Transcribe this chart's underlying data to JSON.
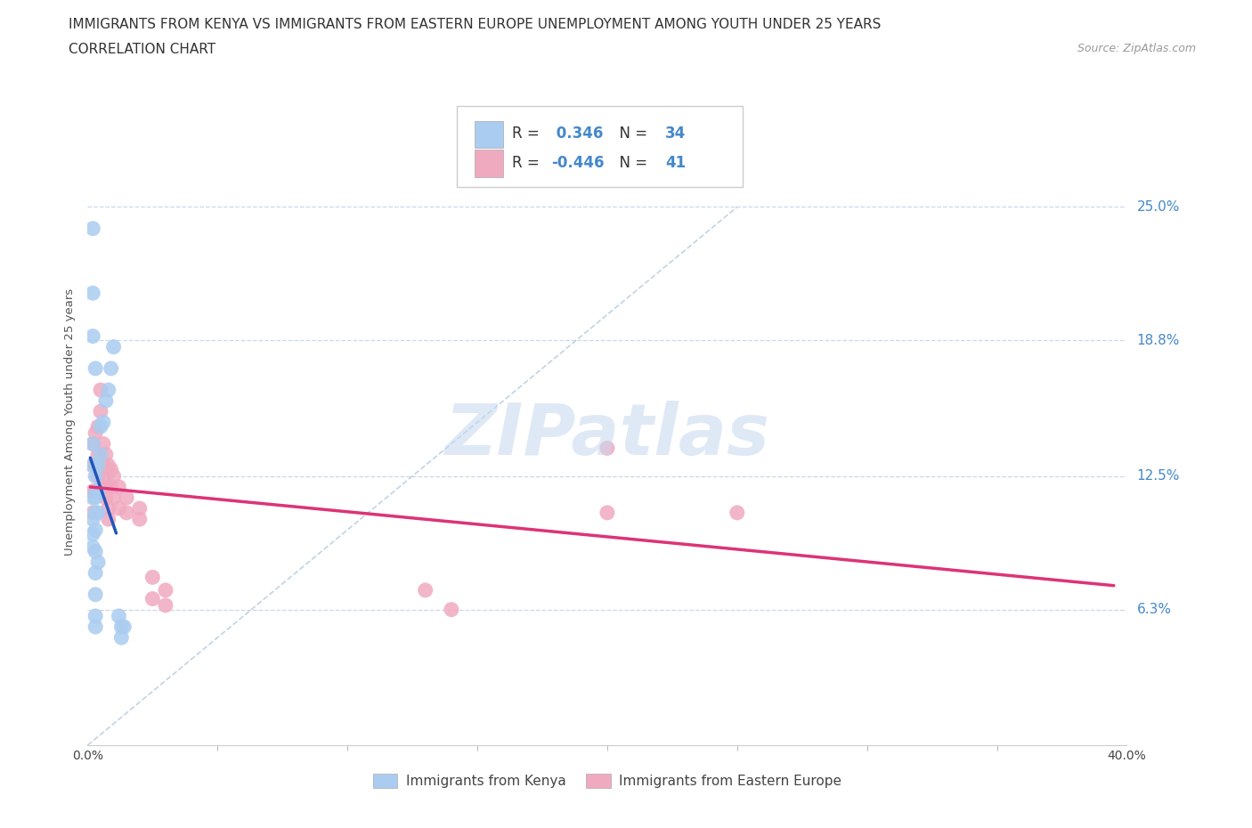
{
  "title_line1": "IMMIGRANTS FROM KENYA VS IMMIGRANTS FROM EASTERN EUROPE UNEMPLOYMENT AMONG YOUTH UNDER 25 YEARS",
  "title_line2": "CORRELATION CHART",
  "source": "Source: ZipAtlas.com",
  "ylabel": "Unemployment Among Youth under 25 years",
  "ytick_labels": [
    "25.0%",
    "18.8%",
    "12.5%",
    "6.3%"
  ],
  "ytick_values": [
    0.25,
    0.188,
    0.125,
    0.063
  ],
  "xrange": [
    0.0,
    0.4
  ],
  "yrange": [
    0.0,
    0.3
  ],
  "kenya_color": "#aaccf0",
  "eastern_color": "#f0aac0",
  "kenya_line_color": "#2255bb",
  "eastern_line_color": "#dd3377",
  "diagonal_color": "#b8ccdd",
  "kenya_R": 0.346,
  "kenya_N": 34,
  "eastern_R": -0.446,
  "eastern_N": 41,
  "kenya_scatter": [
    [
      0.002,
      0.115
    ],
    [
      0.002,
      0.105
    ],
    [
      0.002,
      0.098
    ],
    [
      0.002,
      0.092
    ],
    [
      0.003,
      0.125
    ],
    [
      0.003,
      0.115
    ],
    [
      0.003,
      0.108
    ],
    [
      0.003,
      0.1
    ],
    [
      0.003,
      0.09
    ],
    [
      0.003,
      0.08
    ],
    [
      0.003,
      0.07
    ],
    [
      0.003,
      0.06
    ],
    [
      0.004,
      0.13
    ],
    [
      0.004,
      0.118
    ],
    [
      0.004,
      0.108
    ],
    [
      0.005,
      0.148
    ],
    [
      0.005,
      0.135
    ],
    [
      0.006,
      0.15
    ],
    [
      0.007,
      0.16
    ],
    [
      0.008,
      0.165
    ],
    [
      0.009,
      0.175
    ],
    [
      0.01,
      0.185
    ],
    [
      0.012,
      0.06
    ],
    [
      0.013,
      0.055
    ],
    [
      0.013,
      0.05
    ],
    [
      0.014,
      0.055
    ],
    [
      0.002,
      0.13
    ],
    [
      0.002,
      0.14
    ],
    [
      0.002,
      0.19
    ],
    [
      0.002,
      0.21
    ],
    [
      0.002,
      0.24
    ],
    [
      0.003,
      0.175
    ],
    [
      0.004,
      0.085
    ],
    [
      0.003,
      0.055
    ]
  ],
  "eastern_scatter": [
    [
      0.002,
      0.14
    ],
    [
      0.002,
      0.13
    ],
    [
      0.002,
      0.118
    ],
    [
      0.002,
      0.108
    ],
    [
      0.003,
      0.145
    ],
    [
      0.003,
      0.13
    ],
    [
      0.003,
      0.118
    ],
    [
      0.004,
      0.148
    ],
    [
      0.004,
      0.135
    ],
    [
      0.004,
      0.125
    ],
    [
      0.005,
      0.165
    ],
    [
      0.005,
      0.155
    ],
    [
      0.006,
      0.14
    ],
    [
      0.006,
      0.13
    ],
    [
      0.006,
      0.12
    ],
    [
      0.007,
      0.135
    ],
    [
      0.007,
      0.125
    ],
    [
      0.007,
      0.115
    ],
    [
      0.008,
      0.13
    ],
    [
      0.008,
      0.12
    ],
    [
      0.008,
      0.11
    ],
    [
      0.008,
      0.105
    ],
    [
      0.009,
      0.128
    ],
    [
      0.009,
      0.12
    ],
    [
      0.01,
      0.125
    ],
    [
      0.01,
      0.115
    ],
    [
      0.012,
      0.12
    ],
    [
      0.012,
      0.11
    ],
    [
      0.015,
      0.115
    ],
    [
      0.015,
      0.108
    ],
    [
      0.02,
      0.11
    ],
    [
      0.02,
      0.105
    ],
    [
      0.025,
      0.078
    ],
    [
      0.025,
      0.068
    ],
    [
      0.03,
      0.072
    ],
    [
      0.03,
      0.065
    ],
    [
      0.2,
      0.138
    ],
    [
      0.2,
      0.108
    ],
    [
      0.25,
      0.108
    ],
    [
      0.13,
      0.072
    ],
    [
      0.14,
      0.063
    ]
  ],
  "watermark": "ZIPatlas",
  "background_color": "#ffffff",
  "grid_color": "#c8d8ec",
  "title_fontsize": 11,
  "axis_label_fontsize": 9.5,
  "tick_fontsize": 10,
  "legend_fontsize": 12,
  "right_label_color": "#4488cc"
}
